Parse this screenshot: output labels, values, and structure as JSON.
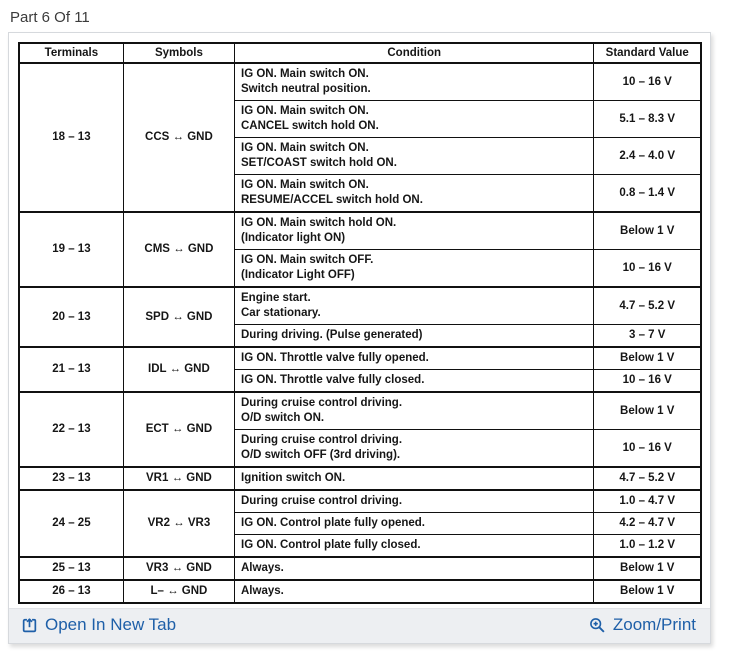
{
  "page": {
    "title": "Part 6 Of 11"
  },
  "table": {
    "headers": [
      "Terminals",
      "Symbols",
      "Condition",
      "Standard Value"
    ],
    "groups": [
      {
        "terminals": "18 – 13",
        "symbols": "CCS ↔ GND",
        "rows": [
          {
            "condition": [
              "IG ON. Main switch ON.",
              "Switch neutral position."
            ],
            "value": "10 – 16 V"
          },
          {
            "condition": [
              "IG ON. Main switch ON.",
              "CANCEL switch hold ON."
            ],
            "value": "5.1 – 8.3 V"
          },
          {
            "condition": [
              "IG ON. Main switch ON.",
              "SET/COAST switch hold ON."
            ],
            "value": "2.4 – 4.0 V"
          },
          {
            "condition": [
              "IG ON. Main switch ON.",
              "RESUME/ACCEL switch hold ON."
            ],
            "value": "0.8 – 1.4 V"
          }
        ]
      },
      {
        "terminals": "19 – 13",
        "symbols": "CMS ↔ GND",
        "rows": [
          {
            "condition": [
              "IG ON. Main switch hold ON.",
              "(Indicator light ON)"
            ],
            "value": "Below 1 V"
          },
          {
            "condition": [
              "IG ON. Main switch OFF.",
              "(Indicator Light OFF)"
            ],
            "value": "10 – 16 V"
          }
        ]
      },
      {
        "terminals": "20 – 13",
        "symbols": "SPD ↔ GND",
        "rows": [
          {
            "condition": [
              "Engine start.",
              "Car stationary."
            ],
            "value": "4.7 – 5.2 V"
          },
          {
            "condition": [
              "During driving. (Pulse generated)"
            ],
            "value": "3 – 7 V"
          }
        ]
      },
      {
        "terminals": "21 – 13",
        "symbols": "IDL ↔ GND",
        "rows": [
          {
            "condition": [
              "IG ON. Throttle valve fully opened."
            ],
            "value": "Below 1 V"
          },
          {
            "condition": [
              "IG ON. Throttle valve fully closed."
            ],
            "value": "10 – 16 V"
          }
        ]
      },
      {
        "terminals": "22 – 13",
        "symbols": "ECT ↔ GND",
        "rows": [
          {
            "condition": [
              "During cruise control driving.",
              "O/D switch ON."
            ],
            "value": "Below 1 V"
          },
          {
            "condition": [
              "During cruise control driving.",
              "O/D switch OFF (3rd driving)."
            ],
            "value": "10 – 16 V"
          }
        ]
      },
      {
        "terminals": "23 – 13",
        "symbols": "VR1 ↔ GND",
        "rows": [
          {
            "condition": [
              "Ignition switch ON."
            ],
            "value": "4.7 – 5.2 V"
          }
        ]
      },
      {
        "terminals": "24 – 25",
        "symbols": "VR2 ↔ VR3",
        "rows": [
          {
            "condition": [
              "During cruise control driving."
            ],
            "value": "1.0 – 4.7 V"
          },
          {
            "condition": [
              "IG ON. Control plate fully opened."
            ],
            "value": "4.2 – 4.7 V"
          },
          {
            "condition": [
              "IG ON. Control plate fully closed."
            ],
            "value": "1.0 – 1.2 V"
          }
        ]
      },
      {
        "terminals": "25 – 13",
        "symbols": "VR3 ↔ GND",
        "rows": [
          {
            "condition": [
              "Always."
            ],
            "value": "Below 1 V"
          }
        ]
      },
      {
        "terminals": "26 – 13",
        "symbols": "L– ↔ GND",
        "rows": [
          {
            "condition": [
              "Always."
            ],
            "value": "Below 1 V"
          }
        ]
      }
    ]
  },
  "footer": {
    "open_in_new_tab_label": "Open In New Tab",
    "zoom_print_label": "Zoom/Print"
  },
  "colors": {
    "link_blue": "#1e5fa8",
    "footer_background": "#edeff2",
    "table_ink": "#111111",
    "heading_text": "#3b3b3b"
  }
}
